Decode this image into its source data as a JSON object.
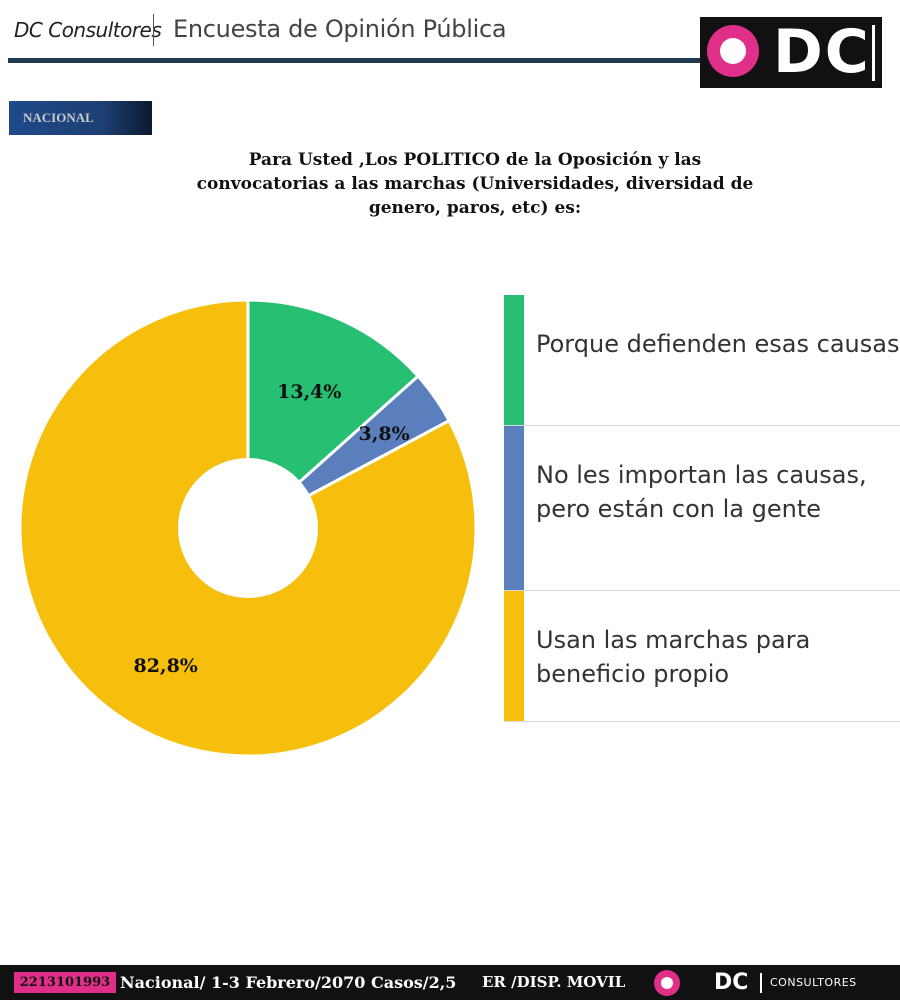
{
  "header": {
    "brand": "DC Consultores",
    "title": "Encuesta de Opinión Pública",
    "logo_text": "DC"
  },
  "tag": "NACIONAL",
  "question": "Para Usted ,Los POLITICO de la Oposición y las convocatorias a las marchas (Universidades, diversidad de genero, paros, etc) es:",
  "chart_data": {
    "type": "pie",
    "title": "Para Usted ,Los POLITICO de la Oposición y las convocatorias a las marchas (Universidades, diversidad de genero, paros, etc) es:",
    "categories": [
      "Porque defienden esas causas",
      "No les importan las causas, pero están con la gente",
      "Usan las marchas para beneficio propio"
    ],
    "values": [
      13.4,
      3.8,
      82.8
    ],
    "labels": [
      "13,4%",
      "3,8%",
      "82,8%"
    ],
    "colors": [
      "#27bf71",
      "#5b7fbd",
      "#f7bf0d"
    ],
    "legend_position": "right"
  },
  "footer": {
    "phone": "2213101993",
    "info": "Nacional/ 1-3 Febrero/2070 Casos/2,5",
    "info2": "ER /DISP. MOVIL",
    "dc": "DC",
    "consultores": "CONSULTORES"
  }
}
